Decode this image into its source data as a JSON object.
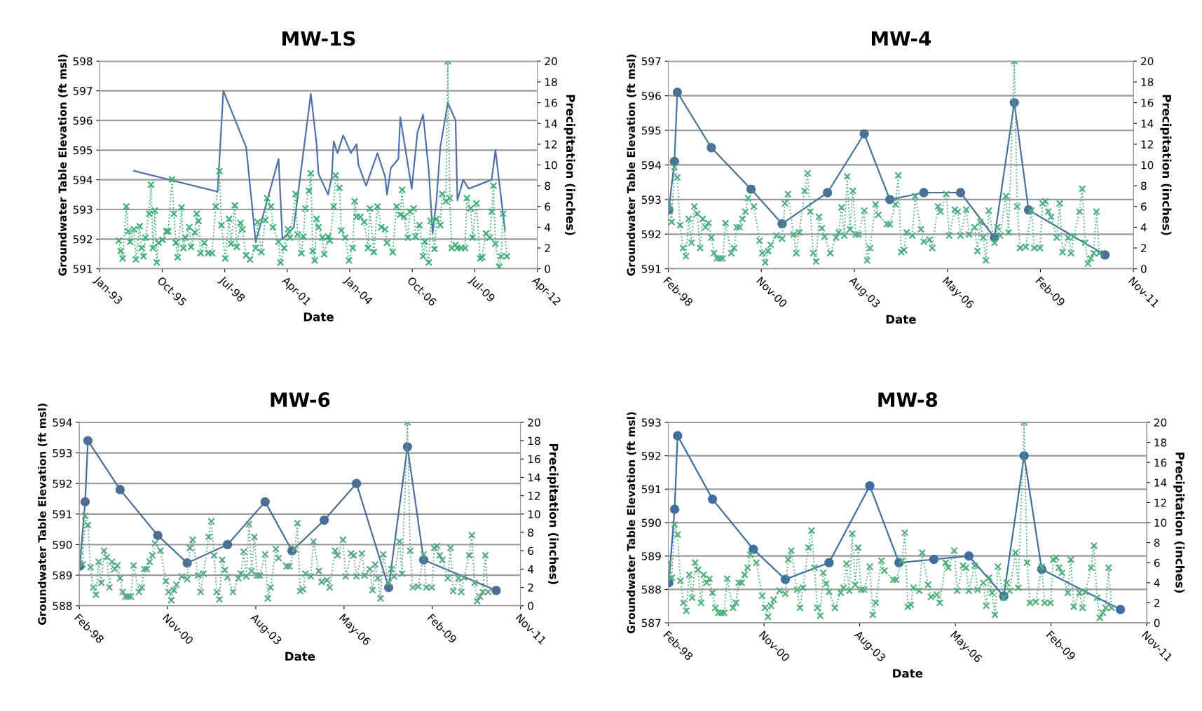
{
  "chart_data": [
    {
      "type": "line",
      "title": "MW-1S",
      "xlabel": "Date",
      "ylabel": "Groundwater Table Elevation (ft msl)",
      "y2label": "Precipitation (inches)",
      "grid": "y",
      "xlim": [
        "1993-01-31",
        "2012-04-01"
      ],
      "xticks": [
        {
          "value": "1993-01-31",
          "label": "Jan-93"
        },
        {
          "value": "1995-10-28",
          "label": "Oct-95"
        },
        {
          "value": "1998-07-24",
          "label": "Jul-98"
        },
        {
          "value": "2001-04-19",
          "label": "Apr-01"
        },
        {
          "value": "2004-01-14",
          "label": "Jan-04"
        },
        {
          "value": "2006-10-10",
          "label": "Oct-06"
        },
        {
          "value": "2009-07-06",
          "label": "Jul-09"
        },
        {
          "value": "2012-04-01",
          "label": "Apr-12"
        }
      ],
      "ylim": [
        591,
        598
      ],
      "yticks": [
        591,
        592,
        593,
        594,
        595,
        596,
        597,
        598
      ],
      "y2lim": [
        0,
        20
      ],
      "y2ticks": [
        0,
        2,
        4,
        6,
        8,
        10,
        12,
        14,
        16,
        18,
        20
      ],
      "series": [
        {
          "type": "line",
          "color": "#4f73a8",
          "marker": "none",
          "line_style": "solid",
          "x": [
            "1994-08",
            "1998-04",
            "1998-07",
            "1999-07",
            "1999-12",
            "2000-12",
            "2001-02",
            "2001-08",
            "2002-05",
            "2002-08",
            "2002-09",
            "2003-02",
            "2003-04",
            "2003-05",
            "2003-07",
            "2003-10",
            "2004-02",
            "2004-05",
            "2004-06",
            "2004-10",
            "2005-04",
            "2005-08",
            "2005-09",
            "2005-11",
            "2006-03",
            "2006-04",
            "2006-10",
            "2007-01",
            "2007-04",
            "2007-07",
            "2007-09",
            "2007-11",
            "2008-01",
            "2008-05",
            "2008-09",
            "2008-10",
            "2009-01",
            "2009-04",
            "2010-04",
            "2010-06",
            "2010-11"
          ],
          "values": [
            594.3,
            593.6,
            597.0,
            595.1,
            591.9,
            594.7,
            592.0,
            592.4,
            596.9,
            595.2,
            594.2,
            593.5,
            594.1,
            595.3,
            594.9,
            595.5,
            594.9,
            595.2,
            594.5,
            593.8,
            594.9,
            594.1,
            593.5,
            594.4,
            594.7,
            596.1,
            593.7,
            595.6,
            596.2,
            594.3,
            592.2,
            593.3,
            595.1,
            596.6,
            596.0,
            593.3,
            594.0,
            593.7,
            594.0,
            595.0,
            592.3
          ]
        },
        {
          "type": "line",
          "color": "#3fae78",
          "marker": "cross",
          "line_style": "dotted",
          "axis": "y2",
          "x": [
            "1993-12",
            "1994-01",
            "1994-02",
            "1994-04",
            "1994-05",
            "1994-06",
            "1994-08",
            "1994-09",
            "1994-11",
            "1994-12",
            "1995-01",
            "1995-02",
            "1995-04",
            "1995-05",
            "1995-06",
            "1995-07",
            "1995-08",
            "1995-09",
            "1995-11",
            "1996-01",
            "1996-02",
            "1996-04",
            "1996-05",
            "1996-06",
            "1996-07",
            "1996-09",
            "1996-10",
            "1996-11",
            "1997-01",
            "1997-02",
            "1997-04",
            "1997-05",
            "1997-06",
            "1997-07",
            "1997-09",
            "1997-11",
            "1998-01",
            "1998-03",
            "1998-05",
            "1998-06",
            "1998-08",
            "1998-10",
            "1998-11",
            "1999-01",
            "1999-02",
            "1999-04",
            "1999-05",
            "1999-07",
            "1999-09",
            "1999-12",
            "2000-01",
            "2000-03",
            "2000-05",
            "2000-06",
            "2000-08",
            "2000-09",
            "2000-12",
            "2001-01",
            "2001-03",
            "2001-05",
            "2001-06",
            "2001-09",
            "2001-10",
            "2001-12",
            "2002-01",
            "2002-02",
            "2002-04",
            "2002-05",
            "2002-06",
            "2002-07",
            "2002-08",
            "2002-09",
            "2002-11",
            "2002-12",
            "2003-02",
            "2003-03",
            "2003-05",
            "2003-06",
            "2003-08",
            "2003-09",
            "2003-11",
            "2004-01",
            "2004-03",
            "2004-04",
            "2004-05",
            "2004-07",
            "2004-09",
            "2004-11",
            "2004-12",
            "2005-02",
            "2005-04",
            "2005-06",
            "2005-08",
            "2005-09",
            "2005-12",
            "2006-02",
            "2006-04",
            "2006-05",
            "2006-06",
            "2006-08",
            "2006-09",
            "2006-11",
            "2006-12",
            "2007-02",
            "2007-04",
            "2007-05",
            "2007-07",
            "2007-08",
            "2007-10",
            "2007-11",
            "2008-01",
            "2008-02",
            "2008-04",
            "2008-05",
            "2008-06",
            "2008-07",
            "2008-09",
            "2008-10",
            "2008-12",
            "2009-02",
            "2009-03",
            "2009-05",
            "2009-06",
            "2009-08",
            "2009-10",
            "2009-11",
            "2010-01",
            "2010-03",
            "2010-04",
            "2010-05",
            "2010-06",
            "2010-08",
            "2010-09",
            "2010-10",
            "2010-12"
          ],
          "values": [
            2.7,
            1.7,
            1.0,
            6.0,
            3.6,
            2.6,
            3.8,
            0.9,
            4.1,
            2.0,
            1.2,
            3.0,
            5.3,
            8.1,
            2.0,
            5.6,
            0.6,
            2.5,
            2.8,
            3.6,
            3.6,
            8.6,
            5.3,
            2.5,
            1.1,
            5.9,
            2.0,
            3.0,
            4.0,
            2.1,
            3.5,
            5.3,
            4.6,
            1.5,
            2.5,
            1.5,
            1.5,
            6.0,
            9.4,
            4.2,
            1.0,
            4.8,
            2.4,
            6.1,
            2.1,
            4.4,
            3.8,
            1.3,
            0.9,
            2.0,
            4.5,
            1.6,
            4.7,
            6.8,
            6.0,
            4.0,
            2.6,
            0.6,
            2.0,
            3.8,
            3.0,
            7.2,
            3.3,
            1.5,
            3.1,
            5.8,
            7.5,
            9.2,
            1.7,
            0.8,
            4.8,
            4.0,
            3.0,
            1.4,
            3.1,
            2.7,
            6.0,
            9.0,
            7.8,
            3.7,
            3.0,
            0.8,
            2.0,
            6.5,
            5.0,
            5.0,
            4.5,
            2.0,
            5.8,
            1.6,
            6.0,
            4.0,
            3.8,
            2.5,
            1.6,
            6.0,
            5.2,
            7.6,
            5.0,
            3.0,
            5.5,
            5.8,
            3.1,
            4.2,
            1.2,
            2.6,
            0.6,
            4.6,
            1.9,
            4.8,
            4.2,
            7.2,
            6.5,
            20,
            6.8,
            2.0,
            2.3,
            2.0,
            2.0,
            2.0,
            6.8,
            5.8,
            3.0,
            6.3,
            1.0,
            1.1,
            3.4,
            3.0,
            5.5,
            8.0,
            2.4,
            0.2,
            1.2,
            5.3,
            1.2
          ]
        }
      ]
    },
    {
      "type": "line",
      "title": "MW-4",
      "xlabel": "Date",
      "ylabel": "Groundwater Table Elevation (ft msl)",
      "y2label": "Precipitation (inches)",
      "grid": "y",
      "xlim": [
        "1998-02-24",
        "2011-11-03"
      ],
      "xticks": [
        {
          "value": "1998-02-24",
          "label": "Feb-98"
        },
        {
          "value": "2000-11-20",
          "label": "Nov-00"
        },
        {
          "value": "2003-08-17",
          "label": "Aug-03"
        },
        {
          "value": "2006-05-13",
          "label": "May-06"
        },
        {
          "value": "2009-02-06",
          "label": "Feb-09"
        },
        {
          "value": "2011-11-03",
          "label": "Nov-11"
        }
      ],
      "ylim": [
        591,
        597
      ],
      "yticks": [
        591,
        592,
        593,
        594,
        595,
        596,
        597
      ],
      "y2lim": [
        0,
        20
      ],
      "y2ticks": [
        0,
        2,
        4,
        6,
        8,
        10,
        12,
        14,
        16,
        18,
        20
      ],
      "series": [
        {
          "type": "line",
          "color": "#4a7397",
          "marker": "circle",
          "line_style": "solid",
          "x": [
            "1998-03",
            "1998-05",
            "1998-06",
            "1999-06",
            "2000-08",
            "2001-07",
            "2002-11",
            "2003-12",
            "2004-09",
            "2005-09",
            "2006-10",
            "2007-10",
            "2008-05",
            "2008-10",
            "2011-01"
          ],
          "values": [
            592.7,
            594.1,
            596.1,
            594.5,
            593.3,
            592.3,
            593.2,
            594.9,
            593.0,
            593.2,
            593.2,
            591.9,
            595.8,
            592.7,
            591.4
          ]
        },
        {
          "type": "line",
          "color": "#4fae85",
          "marker": "cross",
          "line_style": "dotted",
          "axis": "y2",
          "x": [
            "1998-03",
            "1998-04",
            "1998-05",
            "1998-06",
            "1998-07",
            "1998-08",
            "1998-09",
            "1998-10",
            "1998-11",
            "1998-12",
            "1999-01",
            "1999-02",
            "1999-03",
            "1999-04",
            "1999-05",
            "1999-06",
            "1999-07",
            "1999-08",
            "1999-09",
            "1999-10",
            "1999-11",
            "2000-01",
            "2000-02",
            "2000-03",
            "2000-04",
            "2000-05",
            "2000-06",
            "2000-07",
            "2000-09",
            "2000-11",
            "2000-12",
            "2001-01",
            "2001-02",
            "2001-03",
            "2001-05",
            "2001-07",
            "2001-08",
            "2001-09",
            "2001-11",
            "2001-12",
            "2002-01",
            "2002-03",
            "2002-04",
            "2002-05",
            "2002-06",
            "2002-07",
            "2002-08",
            "2002-09",
            "2002-10",
            "2002-12",
            "2003-02",
            "2003-03",
            "2003-04",
            "2003-05",
            "2003-06",
            "2003-07",
            "2003-08",
            "2003-09",
            "2003-10",
            "2003-12",
            "2004-01",
            "2004-02",
            "2004-04",
            "2004-05",
            "2004-08",
            "2004-09",
            "2004-11",
            "2004-12",
            "2005-01",
            "2005-02",
            "2005-03",
            "2005-05",
            "2005-06",
            "2005-08",
            "2005-09",
            "2005-11",
            "2005-12",
            "2006-02",
            "2006-03",
            "2006-05",
            "2006-06",
            "2006-08",
            "2006-09",
            "2006-10",
            "2006-12",
            "2007-01",
            "2007-03",
            "2007-04",
            "2007-05",
            "2007-06",
            "2007-07",
            "2007-08",
            "2007-10",
            "2007-11",
            "2007-12",
            "2008-02",
            "2008-03",
            "2008-05",
            "2008-06",
            "2008-07",
            "2008-09",
            "2008-11",
            "2008-12",
            "2009-02",
            "2009-03",
            "2009-04",
            "2009-05",
            "2009-06",
            "2009-08",
            "2009-09",
            "2009-10",
            "2009-12",
            "2010-01",
            "2010-02",
            "2010-04",
            "2010-05",
            "2010-06",
            "2010-07",
            "2010-08",
            "2010-09",
            "2010-10",
            "2010-11"
          ],
          "values": [
            6.0,
            4.5,
            9.8,
            8.8,
            4.2,
            2.0,
            1.2,
            4.8,
            2.5,
            6.0,
            5.3,
            2.0,
            4.8,
            4.0,
            4.4,
            3.0,
            1.5,
            1.0,
            1.0,
            1.0,
            4.4,
            1.5,
            2.0,
            4.0,
            4.0,
            4.8,
            5.5,
            6.8,
            6.0,
            2.7,
            1.5,
            0.6,
            1.7,
            2.3,
            3.2,
            2.9,
            6.3,
            7.2,
            3.3,
            1.5,
            3.5,
            7.5,
            9.2,
            5.5,
            1.5,
            0.7,
            5.0,
            3.9,
            3.1,
            1.5,
            3.0,
            3.5,
            5.9,
            3.2,
            8.9,
            3.8,
            7.5,
            3.3,
            3.3,
            5.6,
            0.8,
            2.0,
            6.2,
            5.2,
            4.3,
            4.3,
            6.2,
            9.0,
            1.6,
            1.8,
            3.5,
            3.2,
            7.0,
            3.8,
            2.6,
            2.8,
            2.0,
            6.0,
            5.5,
            7.2,
            3.2,
            5.7,
            5.5,
            3.2,
            5.7,
            3.3,
            4.0,
            1.7,
            4.5,
            3.0,
            0.8,
            5.6,
            2.5,
            4.0,
            3.2,
            7.0,
            3.5,
            20,
            6.0,
            2.0,
            2.1,
            5.6,
            2.0,
            2.0,
            6.3,
            6.5,
            5.5,
            5.0,
            3.0,
            6.3,
            1.6,
            3.0,
            1.5,
            3.1,
            5.5,
            7.7,
            2.5,
            0.5,
            1.0,
            1.5,
            5.5,
            1.5
          ]
        }
      ]
    },
    {
      "type": "line",
      "title": "MW-6",
      "xlabel": "Date",
      "ylabel": "Groundwater Table Elevation (ft msl)",
      "y2label": "Precipitation (inches)",
      "grid": "y",
      "xlim": [
        "1998-02-24",
        "2011-11-03"
      ],
      "xticks": [
        {
          "value": "1998-02-24",
          "label": "Feb-98"
        },
        {
          "value": "2000-11-20",
          "label": "Nov-00"
        },
        {
          "value": "2003-08-17",
          "label": "Aug-03"
        },
        {
          "value": "2006-05-13",
          "label": "May-06"
        },
        {
          "value": "2009-02-06",
          "label": "Feb-09"
        },
        {
          "value": "2011-11-03",
          "label": "Nov-11"
        }
      ],
      "ylim": [
        588,
        594
      ],
      "yticks": [
        588,
        589,
        590,
        591,
        592,
        593,
        594
      ],
      "y2lim": [
        0,
        20
      ],
      "y2ticks": [
        0,
        2,
        4,
        6,
        8,
        10,
        12,
        14,
        16,
        18,
        20
      ],
      "series": [
        {
          "type": "line",
          "color": "#4d6e96",
          "marker": "circle",
          "line_style": "solid",
          "x": [
            "1998-03",
            "1998-05",
            "1998-06",
            "1999-06",
            "2000-08",
            "2001-07",
            "2002-10",
            "2003-12",
            "2004-10",
            "2005-10",
            "2006-10",
            "2007-10",
            "2008-05",
            "2008-11",
            "2011-02"
          ],
          "values": [
            589.3,
            591.4,
            593.4,
            591.8,
            590.3,
            589.4,
            590.0,
            591.4,
            589.8,
            590.8,
            592.0,
            588.6,
            593.2,
            589.5,
            588.5
          ]
        },
        {
          "type": "line",
          "color": "#5aa88a",
          "marker": "cross",
          "line_style": "dotted",
          "axis": "y2",
          "x": [
            "1998-03",
            "1998-04",
            "1998-05",
            "1998-06",
            "1998-07",
            "1998-08",
            "1998-09",
            "1998-10",
            "1998-11",
            "1998-12",
            "1999-01",
            "1999-02",
            "1999-03",
            "1999-04",
            "1999-05",
            "1999-06",
            "1999-07",
            "1999-08",
            "1999-09",
            "1999-10",
            "1999-11",
            "2000-01",
            "2000-02",
            "2000-03",
            "2000-04",
            "2000-05",
            "2000-06",
            "2000-07",
            "2000-09",
            "2000-11",
            "2000-12",
            "2001-01",
            "2001-02",
            "2001-03",
            "2001-05",
            "2001-07",
            "2001-08",
            "2001-09",
            "2001-11",
            "2001-12",
            "2002-01",
            "2002-03",
            "2002-04",
            "2002-05",
            "2002-06",
            "2002-07",
            "2002-08",
            "2002-09",
            "2002-10",
            "2002-12",
            "2003-02",
            "2003-03",
            "2003-04",
            "2003-05",
            "2003-06",
            "2003-07",
            "2003-08",
            "2003-09",
            "2003-10",
            "2003-12",
            "2004-01",
            "2004-02",
            "2004-04",
            "2004-05",
            "2004-08",
            "2004-09",
            "2004-11",
            "2004-12",
            "2005-01",
            "2005-02",
            "2005-03",
            "2005-05",
            "2005-06",
            "2005-08",
            "2005-09",
            "2005-11",
            "2005-12",
            "2006-02",
            "2006-03",
            "2006-05",
            "2006-06",
            "2006-08",
            "2006-09",
            "2006-10",
            "2006-12",
            "2007-01",
            "2007-03",
            "2007-04",
            "2007-05",
            "2007-06",
            "2007-07",
            "2007-08",
            "2007-10",
            "2007-11",
            "2007-12",
            "2008-02",
            "2008-03",
            "2008-05",
            "2008-06",
            "2008-07",
            "2008-09",
            "2008-11",
            "2008-12",
            "2009-02",
            "2009-03",
            "2009-04",
            "2009-05",
            "2009-06",
            "2009-08",
            "2009-09",
            "2009-10",
            "2009-12",
            "2010-01",
            "2010-02",
            "2010-04",
            "2010-05",
            "2010-06",
            "2010-07",
            "2010-08",
            "2010-09",
            "2010-10",
            "2010-11"
          ],
          "values": [
            6.0,
            4.5,
            9.8,
            8.8,
            4.2,
            2.0,
            1.2,
            4.8,
            2.5,
            6.0,
            5.3,
            2.0,
            4.8,
            4.0,
            4.4,
            3.0,
            1.5,
            1.0,
            1.0,
            1.0,
            4.4,
            1.5,
            2.0,
            4.0,
            4.0,
            4.8,
            5.5,
            6.8,
            6.0,
            2.7,
            1.5,
            0.6,
            1.7,
            2.3,
            3.2,
            2.9,
            6.3,
            7.2,
            3.3,
            1.5,
            3.5,
            7.5,
            9.2,
            5.5,
            1.5,
            0.7,
            5.0,
            3.9,
            3.1,
            1.5,
            3.0,
            3.5,
            5.9,
            3.2,
            8.9,
            3.8,
            7.5,
            3.3,
            3.3,
            5.6,
            0.8,
            2.0,
            6.2,
            5.2,
            4.3,
            4.3,
            6.2,
            9.0,
            1.6,
            1.8,
            3.5,
            3.2,
            7.0,
            3.8,
            2.6,
            2.8,
            2.0,
            6.0,
            5.5,
            7.2,
            3.2,
            5.7,
            5.5,
            3.2,
            5.7,
            3.3,
            4.0,
            1.7,
            4.5,
            3.0,
            0.8,
            5.6,
            2.5,
            4.0,
            3.2,
            7.0,
            3.5,
            20,
            6.0,
            2.0,
            2.1,
            5.6,
            2.0,
            2.0,
            6.3,
            6.5,
            5.5,
            5.0,
            3.0,
            6.3,
            1.6,
            3.0,
            1.5,
            3.1,
            5.5,
            7.7,
            2.5,
            0.5,
            1.0,
            1.5,
            5.5,
            1.5
          ]
        }
      ]
    },
    {
      "type": "line",
      "title": "MW-8",
      "xlabel": "Date",
      "ylabel": "Groundwater Table Elevation (ft msl)",
      "y2label": "Precipitation (inches)",
      "grid": "y",
      "xlim": [
        "1998-02-24",
        "2011-11-03"
      ],
      "xticks": [
        {
          "value": "1998-02-24",
          "label": "Feb-98"
        },
        {
          "value": "2000-11-20",
          "label": "Nov-00"
        },
        {
          "value": "2003-08-17",
          "label": "Aug-03"
        },
        {
          "value": "2006-05-13",
          "label": "May-06"
        },
        {
          "value": "2009-02-06",
          "label": "Feb-09"
        },
        {
          "value": "2011-11-03",
          "label": "Nov-11"
        }
      ],
      "ylim": [
        587,
        593
      ],
      "yticks": [
        587,
        588,
        589,
        590,
        591,
        592,
        593
      ],
      "y2lim": [
        0,
        20
      ],
      "y2ticks": [
        0,
        2,
        4,
        6,
        8,
        10,
        12,
        14,
        16,
        18,
        20
      ],
      "series": [
        {
          "type": "line",
          "color": "#3f6f9e",
          "marker": "circle",
          "line_style": "solid",
          "x": [
            "1998-03",
            "1998-05",
            "1998-06",
            "1999-06",
            "2000-08",
            "2001-07",
            "2002-10",
            "2003-12",
            "2004-10",
            "2005-10",
            "2006-10",
            "2007-10",
            "2008-05",
            "2008-11",
            "2011-02"
          ],
          "values": [
            588.2,
            590.4,
            592.6,
            590.7,
            589.2,
            588.3,
            588.8,
            591.1,
            588.8,
            588.9,
            589.0,
            587.8,
            592.0,
            588.6,
            587.4
          ]
        },
        {
          "type": "line",
          "color": "#4fb07a",
          "marker": "cross",
          "line_style": "dotted",
          "axis": "y2",
          "x": [
            "1998-03",
            "1998-04",
            "1998-05",
            "1998-06",
            "1998-07",
            "1998-08",
            "1998-09",
            "1998-10",
            "1998-11",
            "1998-12",
            "1999-01",
            "1999-02",
            "1999-03",
            "1999-04",
            "1999-05",
            "1999-06",
            "1999-07",
            "1999-08",
            "1999-09",
            "1999-10",
            "1999-11",
            "2000-01",
            "2000-02",
            "2000-03",
            "2000-04",
            "2000-05",
            "2000-06",
            "2000-07",
            "2000-09",
            "2000-11",
            "2000-12",
            "2001-01",
            "2001-02",
            "2001-03",
            "2001-05",
            "2001-07",
            "2001-08",
            "2001-09",
            "2001-11",
            "2001-12",
            "2002-01",
            "2002-03",
            "2002-04",
            "2002-05",
            "2002-06",
            "2002-07",
            "2002-08",
            "2002-09",
            "2002-10",
            "2002-12",
            "2003-02",
            "2003-03",
            "2003-04",
            "2003-05",
            "2003-06",
            "2003-07",
            "2003-08",
            "2003-09",
            "2003-10",
            "2003-12",
            "2004-01",
            "2004-02",
            "2004-04",
            "2004-05",
            "2004-08",
            "2004-09",
            "2004-11",
            "2004-12",
            "2005-01",
            "2005-02",
            "2005-03",
            "2005-05",
            "2005-06",
            "2005-08",
            "2005-09",
            "2005-11",
            "2005-12",
            "2006-02",
            "2006-03",
            "2006-05",
            "2006-06",
            "2006-08",
            "2006-09",
            "2006-10",
            "2006-12",
            "2007-01",
            "2007-03",
            "2007-04",
            "2007-05",
            "2007-06",
            "2007-07",
            "2007-08",
            "2007-10",
            "2007-11",
            "2007-12",
            "2008-02",
            "2008-03",
            "2008-05",
            "2008-06",
            "2008-07",
            "2008-09",
            "2008-11",
            "2008-12",
            "2009-02",
            "2009-03",
            "2009-04",
            "2009-05",
            "2009-06",
            "2009-08",
            "2009-09",
            "2009-10",
            "2009-12",
            "2010-01",
            "2010-02",
            "2010-04",
            "2010-05",
            "2010-06",
            "2010-07",
            "2010-08",
            "2010-09",
            "2010-10",
            "2010-11"
          ],
          "values": [
            6.0,
            4.5,
            9.8,
            8.8,
            4.2,
            2.0,
            1.2,
            4.8,
            2.5,
            6.0,
            5.3,
            2.0,
            4.8,
            4.0,
            4.4,
            3.0,
            1.5,
            1.0,
            1.0,
            1.0,
            4.4,
            1.5,
            2.0,
            4.0,
            4.0,
            4.8,
            5.5,
            6.8,
            6.0,
            2.7,
            1.5,
            0.6,
            1.7,
            2.3,
            3.2,
            2.9,
            6.3,
            7.2,
            3.3,
            1.5,
            3.5,
            7.5,
            9.2,
            5.5,
            1.5,
            0.7,
            5.0,
            3.9,
            3.1,
            1.5,
            3.0,
            3.5,
            5.9,
            3.2,
            8.9,
            3.8,
            7.5,
            3.3,
            3.3,
            5.6,
            0.8,
            2.0,
            6.2,
            5.2,
            4.3,
            4.3,
            6.2,
            9.0,
            1.6,
            1.8,
            3.5,
            3.2,
            7.0,
            3.8,
            2.6,
            2.8,
            2.0,
            6.0,
            5.5,
            7.2,
            3.2,
            5.7,
            5.5,
            3.2,
            5.7,
            3.3,
            4.0,
            1.7,
            4.5,
            3.0,
            0.8,
            5.6,
            2.5,
            4.0,
            3.2,
            7.0,
            3.5,
            20,
            6.0,
            2.0,
            2.1,
            5.6,
            2.0,
            2.0,
            6.3,
            6.5,
            5.5,
            5.0,
            3.0,
            6.3,
            1.6,
            3.0,
            1.5,
            3.1,
            5.5,
            7.7,
            2.5,
            0.5,
            1.0,
            1.5,
            5.5,
            1.5
          ]
        }
      ]
    }
  ]
}
